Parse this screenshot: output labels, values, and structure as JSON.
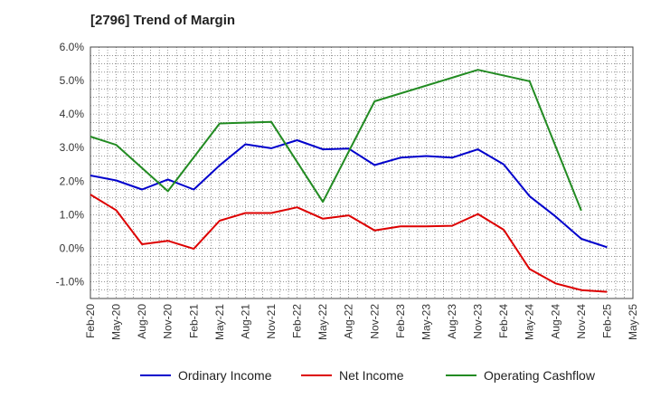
{
  "header": {
    "title": "[2796]  Trend of Margin"
  },
  "chart_data": {
    "type": "line",
    "title": "[2796]  Trend of Margin",
    "xlabel": "",
    "ylabel": "",
    "ylim": [
      -1.5,
      6.0
    ],
    "y_ticks": [
      6.0,
      5.0,
      4.0,
      3.0,
      2.0,
      1.0,
      0.0,
      -1.0
    ],
    "y_tick_labels": [
      "6.0%",
      "5.0%",
      "4.0%",
      "3.0%",
      "2.0%",
      "1.0%",
      "0.0%",
      "-1.0%"
    ],
    "categories": [
      "Feb-20",
      "May-20",
      "Aug-20",
      "Nov-20",
      "Feb-21",
      "May-21",
      "Aug-21",
      "Nov-21",
      "Feb-22",
      "May-22",
      "Aug-22",
      "Nov-22",
      "Feb-23",
      "May-23",
      "Aug-23",
      "Nov-23",
      "Feb-24",
      "May-24",
      "Aug-24",
      "Nov-24",
      "Feb-25",
      "May-25"
    ],
    "grid": true,
    "legend_position": "bottom",
    "series": [
      {
        "name": "Ordinary Income",
        "color": "#0000cc",
        "values": [
          2.17,
          2.02,
          1.75,
          2.05,
          1.75,
          2.47,
          3.1,
          2.98,
          3.22,
          2.95,
          2.97,
          2.48,
          2.7,
          2.75,
          2.7,
          2.95,
          2.5,
          1.55,
          0.95,
          0.28,
          0.03,
          null
        ]
      },
      {
        "name": "Net Income",
        "color": "#dd0000",
        "values": [
          1.6,
          1.13,
          0.12,
          0.22,
          -0.02,
          0.82,
          1.05,
          1.05,
          1.22,
          0.88,
          0.98,
          0.53,
          0.65,
          0.65,
          0.67,
          1.02,
          0.55,
          -0.62,
          -1.05,
          -1.25,
          -1.3,
          null
        ]
      },
      {
        "name": "Operating Cashflow",
        "color": "#228b22",
        "values": [
          3.33,
          3.08,
          null,
          1.7,
          null,
          3.72,
          null,
          3.77,
          null,
          1.38,
          null,
          4.38,
          null,
          null,
          null,
          5.32,
          null,
          4.98,
          null,
          1.12,
          null,
          null
        ]
      }
    ]
  }
}
